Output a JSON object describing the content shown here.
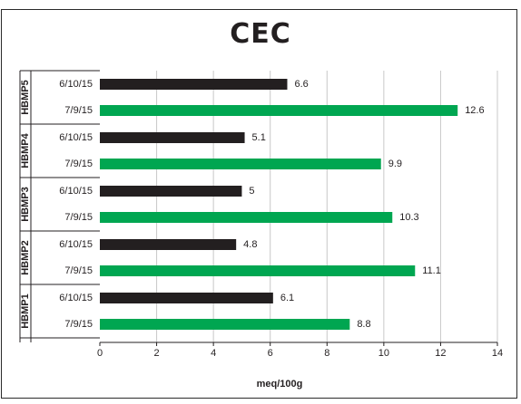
{
  "chart_data": {
    "type": "bar",
    "orientation": "horizontal",
    "title": "CEC",
    "xlabel": "meq/100g",
    "xlim": [
      0,
      14
    ],
    "xticks": [
      0,
      2,
      4,
      6,
      8,
      10,
      12,
      14
    ],
    "grid": true,
    "groups": [
      {
        "name": "HBMP5",
        "bars": [
          {
            "date": "6/10/15",
            "value": 6.6,
            "label": "6.6"
          },
          {
            "date": "7/9/15",
            "value": 12.6,
            "label": "12.6"
          }
        ]
      },
      {
        "name": "HBMP4",
        "bars": [
          {
            "date": "6/10/15",
            "value": 5.1,
            "label": "5.1"
          },
          {
            "date": "7/9/15",
            "value": 9.9,
            "label": "9.9"
          }
        ]
      },
      {
        "name": "HBMP3",
        "bars": [
          {
            "date": "6/10/15",
            "value": 5,
            "label": "5"
          },
          {
            "date": "7/9/15",
            "value": 10.3,
            "label": "10.3"
          }
        ]
      },
      {
        "name": "HBMP2",
        "bars": [
          {
            "date": "6/10/15",
            "value": 4.8,
            "label": "4.8"
          },
          {
            "date": "7/9/15",
            "value": 11.1,
            "label": "11.1"
          }
        ]
      },
      {
        "name": "HBMP1",
        "bars": [
          {
            "date": "6/10/15",
            "value": 6.1,
            "label": "6.1"
          },
          {
            "date": "7/9/15",
            "value": 8.8,
            "label": "8.8"
          }
        ]
      }
    ],
    "colors": {
      "6/10/15": "#231f20",
      "7/9/15": "#00a651"
    }
  }
}
